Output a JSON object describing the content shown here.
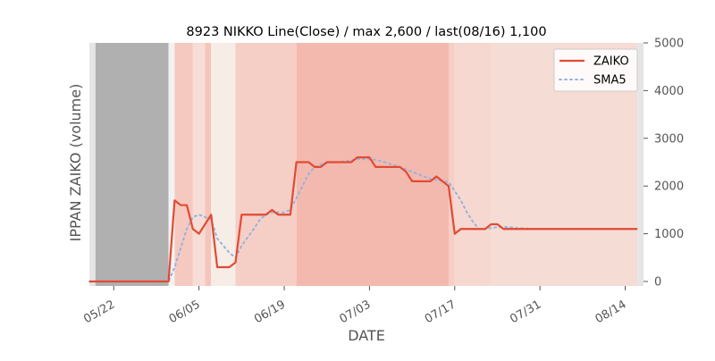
{
  "chart_data": {
    "type": "line",
    "title": "8923 NIKKO Line(Close) / max 2,600 / last(08/16) 1,100",
    "xlabel": "DATE",
    "ylabel": "IPPAN ZAIKO (volume)",
    "ylim": [
      0,
      5000
    ],
    "yticks": [
      0,
      1000,
      2000,
      3000,
      4000,
      5000
    ],
    "y_axis_side": "right",
    "xticks": [
      {
        "date": "2018-05-22",
        "label": "05/22"
      },
      {
        "date": "2018-06-05",
        "label": "06/05"
      },
      {
        "date": "2018-06-19",
        "label": "06/19"
      },
      {
        "date": "2018-07-03",
        "label": "07/03"
      },
      {
        "date": "2018-07-17",
        "label": "07/17"
      },
      {
        "date": "2018-07-31",
        "label": "07/31"
      },
      {
        "date": "2018-08-14",
        "label": "08/14"
      }
    ],
    "xlim": [
      "2018-05-18",
      "2018-08-17"
    ],
    "grid": false,
    "legend": {
      "placement": "top-right",
      "entries": [
        "ZAIKO",
        "SMA5"
      ]
    },
    "colors": {
      "zaiko": "#e24a33",
      "sma5": "#94b4de",
      "grey_band": "#b0b0b0",
      "edge_band": "#e5e5e5"
    },
    "series": [
      {
        "name": "ZAIKO",
        "points": [
          [
            "2018-05-18",
            0
          ],
          [
            "2018-05-21",
            0
          ],
          [
            "2018-05-22",
            0
          ],
          [
            "2018-05-23",
            0
          ],
          [
            "2018-05-24",
            0
          ],
          [
            "2018-05-25",
            0
          ],
          [
            "2018-05-28",
            0
          ],
          [
            "2018-05-29",
            0
          ],
          [
            "2018-05-30",
            0
          ],
          [
            "2018-05-31",
            0
          ],
          [
            "2018-06-01",
            1700
          ],
          [
            "2018-06-02",
            1600
          ],
          [
            "2018-06-03",
            1600
          ],
          [
            "2018-06-04",
            1100
          ],
          [
            "2018-06-05",
            1000
          ],
          [
            "2018-06-07",
            1400
          ],
          [
            "2018-06-08",
            300
          ],
          [
            "2018-06-10",
            300
          ],
          [
            "2018-06-11",
            400
          ],
          [
            "2018-06-12",
            1400
          ],
          [
            "2018-06-14",
            1400
          ],
          [
            "2018-06-15",
            1400
          ],
          [
            "2018-06-16",
            1400
          ],
          [
            "2018-06-17",
            1500
          ],
          [
            "2018-06-18",
            1400
          ],
          [
            "2018-06-19",
            1400
          ],
          [
            "2018-06-20",
            1400
          ],
          [
            "2018-06-21",
            2500
          ],
          [
            "2018-06-22",
            2500
          ],
          [
            "2018-06-23",
            2500
          ],
          [
            "2018-06-24",
            2400
          ],
          [
            "2018-06-25",
            2400
          ],
          [
            "2018-06-26",
            2500
          ],
          [
            "2018-06-27",
            2500
          ],
          [
            "2018-06-28",
            2500
          ],
          [
            "2018-06-29",
            2500
          ],
          [
            "2018-06-30",
            2500
          ],
          [
            "2018-07-01",
            2600
          ],
          [
            "2018-07-02",
            2600
          ],
          [
            "2018-07-03",
            2600
          ],
          [
            "2018-07-04",
            2400
          ],
          [
            "2018-07-05",
            2400
          ],
          [
            "2018-07-06",
            2400
          ],
          [
            "2018-07-07",
            2400
          ],
          [
            "2018-07-08",
            2400
          ],
          [
            "2018-07-09",
            2300
          ],
          [
            "2018-07-10",
            2100
          ],
          [
            "2018-07-11",
            2100
          ],
          [
            "2018-07-12",
            2100
          ],
          [
            "2018-07-13",
            2100
          ],
          [
            "2018-07-14",
            2200
          ],
          [
            "2018-07-15",
            2100
          ],
          [
            "2018-07-16",
            2000
          ],
          [
            "2018-07-17",
            1000
          ],
          [
            "2018-07-18",
            1100
          ],
          [
            "2018-07-19",
            1100
          ],
          [
            "2018-07-20",
            1100
          ],
          [
            "2018-07-21",
            1100
          ],
          [
            "2018-07-22",
            1100
          ],
          [
            "2018-07-23",
            1200
          ],
          [
            "2018-07-24",
            1200
          ],
          [
            "2018-07-25",
            1100
          ],
          [
            "2018-07-26",
            1100
          ],
          [
            "2018-07-27",
            1100
          ],
          [
            "2018-07-30",
            1100
          ],
          [
            "2018-08-01",
            1100
          ],
          [
            "2018-08-03",
            1100
          ],
          [
            "2018-08-06",
            1100
          ],
          [
            "2018-08-08",
            1100
          ],
          [
            "2018-08-10",
            1100
          ],
          [
            "2018-08-13",
            1100
          ],
          [
            "2018-08-14",
            1100
          ],
          [
            "2018-08-15",
            1100
          ],
          [
            "2018-08-16",
            1100
          ]
        ]
      },
      {
        "name": "SMA5",
        "points": [
          [
            "2018-05-18",
            0
          ],
          [
            "2018-05-22",
            0
          ],
          [
            "2018-05-25",
            0
          ],
          [
            "2018-05-29",
            0
          ],
          [
            "2018-05-31",
            0
          ],
          [
            "2018-06-01",
            300
          ],
          [
            "2018-06-02",
            700
          ],
          [
            "2018-06-03",
            1100
          ],
          [
            "2018-06-04",
            1350
          ],
          [
            "2018-06-05",
            1400
          ],
          [
            "2018-06-07",
            1300
          ],
          [
            "2018-06-08",
            900
          ],
          [
            "2018-06-10",
            600
          ],
          [
            "2018-06-11",
            500
          ],
          [
            "2018-06-12",
            750
          ],
          [
            "2018-06-14",
            1100
          ],
          [
            "2018-06-15",
            1300
          ],
          [
            "2018-06-16",
            1400
          ],
          [
            "2018-06-17",
            1450
          ],
          [
            "2018-06-18",
            1450
          ],
          [
            "2018-06-19",
            1450
          ],
          [
            "2018-06-20",
            1500
          ],
          [
            "2018-06-21",
            1750
          ],
          [
            "2018-06-22",
            2000
          ],
          [
            "2018-06-23",
            2250
          ],
          [
            "2018-06-24",
            2400
          ],
          [
            "2018-06-25",
            2450
          ],
          [
            "2018-06-26",
            2480
          ],
          [
            "2018-06-27",
            2500
          ],
          [
            "2018-06-28",
            2500
          ],
          [
            "2018-06-29",
            2520
          ],
          [
            "2018-06-30",
            2540
          ],
          [
            "2018-07-01",
            2560
          ],
          [
            "2018-07-02",
            2560
          ],
          [
            "2018-07-03",
            2560
          ],
          [
            "2018-07-04",
            2550
          ],
          [
            "2018-07-05",
            2520
          ],
          [
            "2018-07-06",
            2480
          ],
          [
            "2018-07-07",
            2440
          ],
          [
            "2018-07-08",
            2400
          ],
          [
            "2018-07-09",
            2350
          ],
          [
            "2018-07-10",
            2300
          ],
          [
            "2018-07-11",
            2250
          ],
          [
            "2018-07-12",
            2200
          ],
          [
            "2018-07-13",
            2150
          ],
          [
            "2018-07-14",
            2130
          ],
          [
            "2018-07-15",
            2100
          ],
          [
            "2018-07-16",
            2080
          ],
          [
            "2018-07-17",
            1900
          ],
          [
            "2018-07-18",
            1700
          ],
          [
            "2018-07-19",
            1450
          ],
          [
            "2018-07-20",
            1250
          ],
          [
            "2018-07-21",
            1100
          ],
          [
            "2018-07-22",
            1100
          ],
          [
            "2018-07-23",
            1120
          ],
          [
            "2018-07-24",
            1140
          ],
          [
            "2018-07-25",
            1140
          ],
          [
            "2018-07-26",
            1140
          ],
          [
            "2018-07-27",
            1120
          ],
          [
            "2018-07-30",
            1100
          ],
          [
            "2018-08-01",
            1100
          ],
          [
            "2018-08-03",
            1100
          ],
          [
            "2018-08-06",
            1100
          ],
          [
            "2018-08-08",
            1100
          ],
          [
            "2018-08-10",
            1100
          ],
          [
            "2018-08-13",
            1100
          ],
          [
            "2018-08-14",
            1100
          ],
          [
            "2018-08-15",
            1100
          ],
          [
            "2018-08-16",
            1100
          ]
        ]
      }
    ],
    "background_bands": [
      {
        "start": "2018-05-18",
        "end": "2018-05-19",
        "color": "#e5e5e5"
      },
      {
        "start": "2018-05-19",
        "end": "2018-05-31",
        "color": "#b0b0b0"
      },
      {
        "start": "2018-05-31",
        "end": "2018-06-01",
        "color": "#f2f2f2"
      },
      {
        "start": "2018-06-01",
        "end": "2018-06-04",
        "color": "#f5c9c0"
      },
      {
        "start": "2018-06-04",
        "end": "2018-06-06",
        "color": "#f7ddd6"
      },
      {
        "start": "2018-06-06",
        "end": "2018-06-07",
        "color": "#f5c5bb"
      },
      {
        "start": "2018-06-07",
        "end": "2018-06-11",
        "color": "#f6ede6"
      },
      {
        "start": "2018-06-11",
        "end": "2018-06-21",
        "color": "#f5cfc6"
      },
      {
        "start": "2018-06-21",
        "end": "2018-07-16",
        "color": "#f3b9ae"
      },
      {
        "start": "2018-07-16",
        "end": "2018-07-17",
        "color": "#f5cfc6"
      },
      {
        "start": "2018-07-17",
        "end": "2018-07-23",
        "color": "#f6d8d0"
      },
      {
        "start": "2018-07-23",
        "end": "2018-08-16",
        "color": "#f5dcd4"
      },
      {
        "start": "2018-08-16",
        "end": "2018-08-17",
        "color": "#e5e5e5"
      }
    ]
  }
}
